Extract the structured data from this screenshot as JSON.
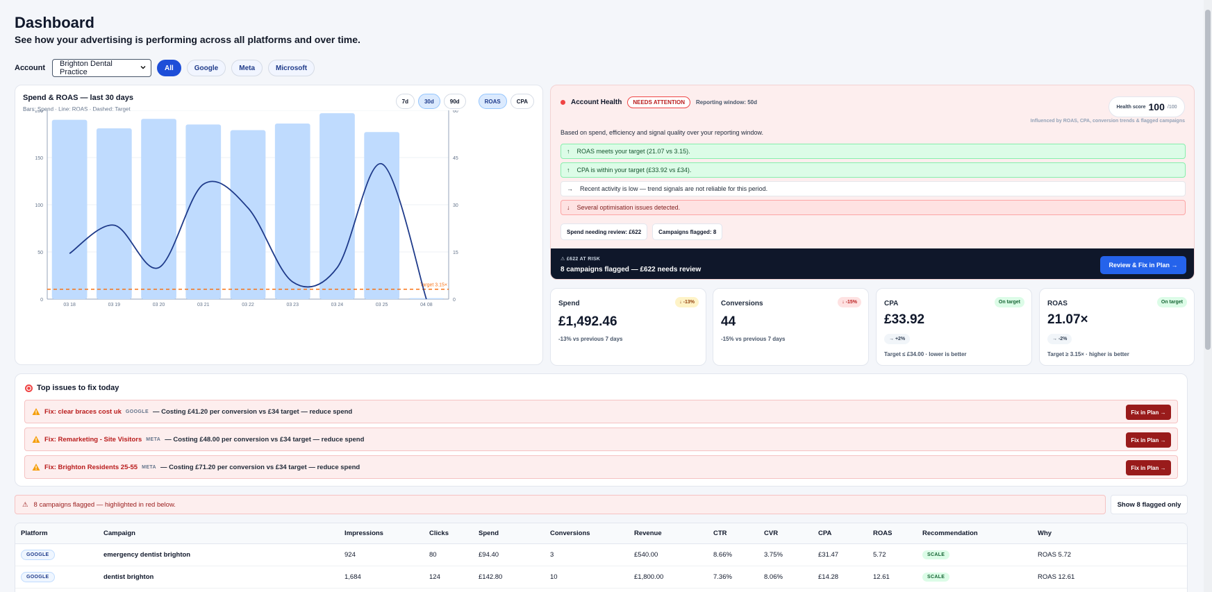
{
  "header": {
    "title": "Dashboard",
    "subtitle": "See how your advertising is performing across all platforms and over time."
  },
  "filters": {
    "account_label": "Account",
    "account_value": "Brighton Dental Practice",
    "platforms": [
      "All",
      "Google",
      "Meta",
      "Microsoft"
    ],
    "active_platform": "All"
  },
  "chart_card": {
    "title": "Spend & ROAS — last 30 days",
    "subtitle": "Bars: Spend · Line: ROAS · Dashed: Target",
    "range_buttons": [
      "7d",
      "30d",
      "90d"
    ],
    "active_range": "30d",
    "metric_buttons": [
      "ROAS",
      "CPA"
    ],
    "active_metric": "ROAS"
  },
  "chart_data": {
    "type": "bar",
    "categories": [
      "03 18",
      "03 19",
      "03 20",
      "03 21",
      "03 22",
      "03 23",
      "03 24",
      "03 25",
      "04 08"
    ],
    "series": [
      {
        "values": [
          190,
          181,
          191,
          185,
          179,
          186,
          197,
          177,
          1
        ],
        "axis": "left"
      },
      {
        "values": [
          14.5,
          23.5,
          10,
          36.5,
          29,
          5.5,
          10,
          43,
          0
        ],
        "axis": "right"
      }
    ],
    "target": {
      "value": 3.15,
      "label": "Target 3.15×"
    },
    "y_left": {
      "ticks": [
        "0",
        "50",
        "100",
        "150",
        "200"
      ],
      "lim": [
        0,
        200
      ]
    },
    "y_right": {
      "ticks": [
        "0",
        "15",
        "30",
        "45",
        "60"
      ],
      "lim": [
        0,
        60
      ]
    },
    "colors": {
      "bar": "#bfdbfe",
      "line": "#1e3a8a",
      "target": "#f97316"
    }
  },
  "health": {
    "title": "Account Health",
    "status": "NEEDS ATTENTION",
    "reporting_window": "Reporting window: 50d",
    "score_label": "Health score",
    "score_value": "100",
    "score_max": "/100",
    "influence_note": "Influenced by ROAS, CPA, conversion trends & flagged campaigns",
    "intro": "Based on spend, efficiency and signal quality over your reporting window.",
    "signals": [
      {
        "icon": "↑",
        "text": "ROAS meets your target (21.07 vs 3.15).",
        "tone": "good"
      },
      {
        "icon": "↑",
        "text": "CPA is within your target (£33.92 vs £34).",
        "tone": "good"
      },
      {
        "icon": "→",
        "text": "Recent activity is low — trend signals are not reliable for this period.",
        "tone": "neutral"
      },
      {
        "icon": "↓",
        "text": "Several optimisation issues detected.",
        "tone": "bad"
      }
    ],
    "chips": [
      "Spend needing review: £622",
      "Campaigns flagged: 8"
    ],
    "risk_label": "£622 AT RISK",
    "risk_text": "8 campaigns flagged — £622 needs review",
    "risk_button": "Review & Fix in Plan →"
  },
  "kpis": {
    "spend": {
      "title": "Spend",
      "value": "£1,492.46",
      "tag": "↓ -13%",
      "note": "-13% vs previous 7 days"
    },
    "conversions": {
      "title": "Conversions",
      "value": "44",
      "tag": "↓ -15%",
      "note": "-15% vs previous 7 days"
    },
    "cpa": {
      "title": "CPA",
      "value": "£33.92",
      "tag": "On target",
      "delta": "→ +2%",
      "note": "Target ≤ £34.00 · lower is better"
    },
    "roas": {
      "title": "ROAS",
      "value": "21.07×",
      "tag": "On target",
      "delta": "→ -2%",
      "note": "Target ≥ 3.15× · higher is better"
    }
  },
  "issues": {
    "title": "Top issues to fix today",
    "items": [
      {
        "fix": "Fix: clear braces cost uk",
        "platform": "GOOGLE",
        "message": "— Costing £41.20 per conversion vs £34 target — reduce spend",
        "button": "Fix in Plan →"
      },
      {
        "fix": "Fix: Remarketing - Site Visitors",
        "platform": "META",
        "message": "— Costing £48.00 per conversion vs £34 target — reduce spend",
        "button": "Fix in Plan →"
      },
      {
        "fix": "Fix: Brighton Residents 25-55",
        "platform": "META",
        "message": "— Costing £71.20 per conversion vs £34 target — reduce spend",
        "button": "Fix in Plan →"
      }
    ]
  },
  "flag_bar": {
    "text": "8 campaigns flagged — highlighted in red below.",
    "button": "Show 8 flagged only"
  },
  "table": {
    "columns": [
      "Platform",
      "Campaign",
      "Impressions",
      "Clicks",
      "Spend",
      "Conversions",
      "Revenue",
      "CTR",
      "CVR",
      "CPA",
      "ROAS",
      "Recommendation",
      "Why"
    ],
    "rows": [
      {
        "platform": "GOOGLE",
        "campaign": "emergency dentist brighton",
        "impressions": "924",
        "clicks": "80",
        "spend": "£94.40",
        "conversions": "3",
        "revenue": "£540.00",
        "ctr": "8.66%",
        "cvr": "3.75%",
        "cpa": "£31.47",
        "roas": "5.72",
        "recommendation": "SCALE",
        "why": "ROAS 5.72"
      },
      {
        "platform": "GOOGLE",
        "campaign": "dentist brighton",
        "impressions": "1,684",
        "clicks": "124",
        "spend": "£142.80",
        "conversions": "10",
        "revenue": "£1,800.00",
        "ctr": "7.36%",
        "cvr": "8.06%",
        "cpa": "£14.28",
        "roas": "12.61",
        "recommendation": "SCALE",
        "why": "ROAS 12.61"
      }
    ]
  }
}
